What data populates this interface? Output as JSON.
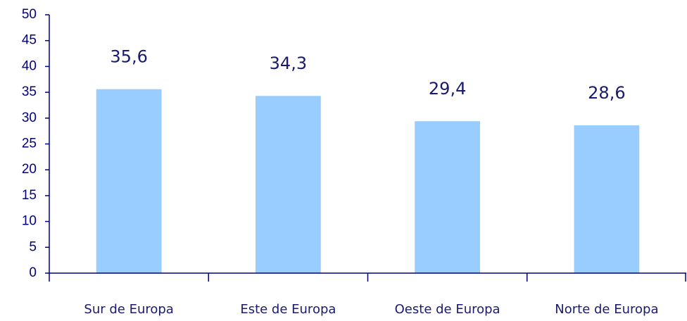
{
  "chart_data": {
    "type": "bar",
    "categories": [
      "Sur de Europa",
      "Este de Europa",
      "Oeste de Europa",
      "Norte de Europa"
    ],
    "values": [
      35.6,
      34.3,
      29.4,
      28.6
    ],
    "value_labels": [
      "35,6",
      "34,3",
      "29,4",
      "28,6"
    ],
    "color": "#99ccff",
    "ylim": [
      0,
      50
    ],
    "yticks": [
      0,
      5,
      10,
      15,
      20,
      25,
      30,
      35,
      40,
      45,
      50
    ],
    "grid": false
  }
}
